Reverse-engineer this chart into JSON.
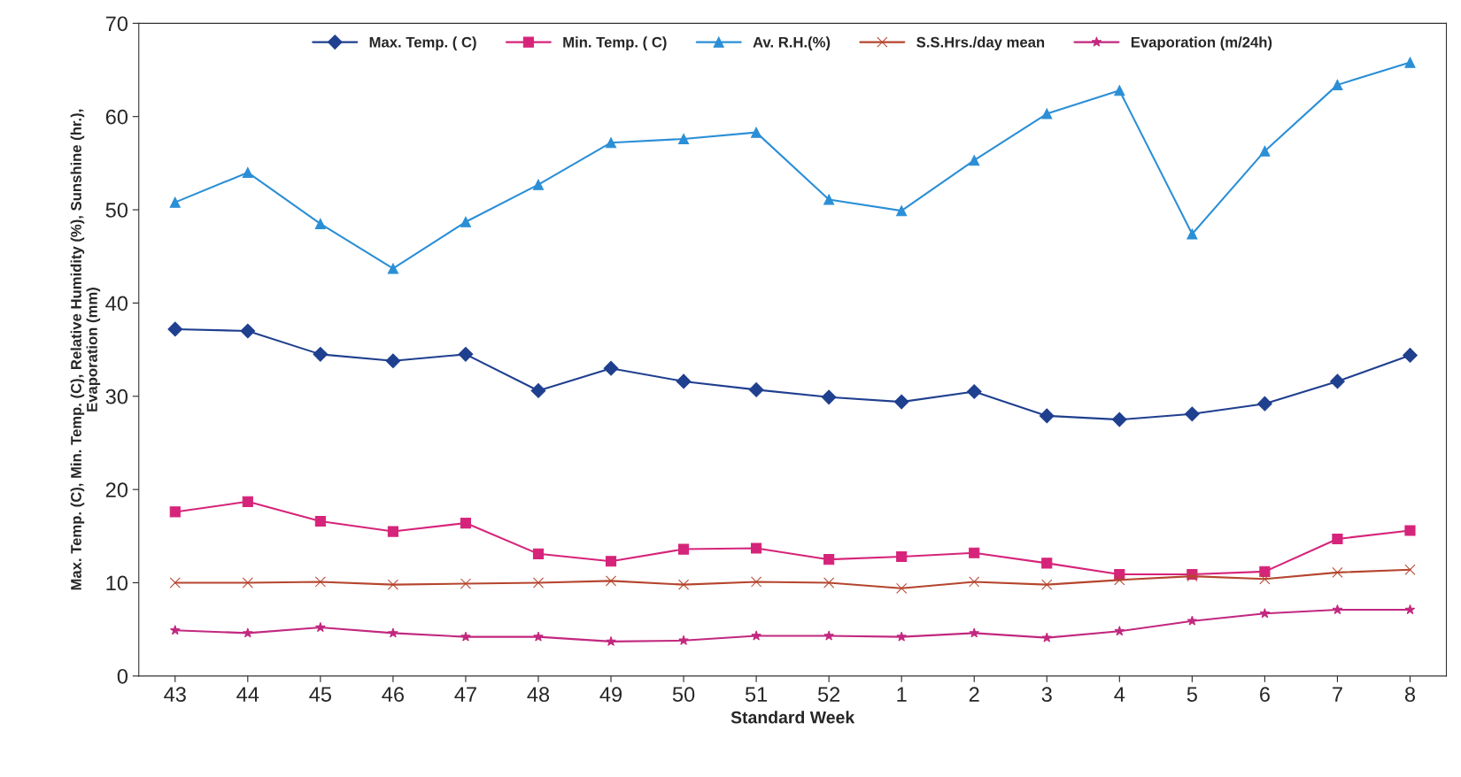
{
  "chart_data": {
    "type": "line",
    "xlabel": "Standard Week",
    "ylabel": "Max. Temp. (C), Min. Temp. (C), Relative Humidity (%), Sunshine (hr.),\nEvaporation (mm)",
    "categories": [
      "43",
      "44",
      "45",
      "46",
      "47",
      "48",
      "49",
      "50",
      "51",
      "52",
      "1",
      "2",
      "3",
      "4",
      "5",
      "6",
      "7",
      "8"
    ],
    "ylim": [
      0,
      70
    ],
    "yticks": [
      0,
      10,
      20,
      30,
      40,
      50,
      60,
      70
    ],
    "grid": false,
    "legend": "top",
    "series": [
      {
        "name": "Max. Temp. ( C)",
        "color": "#1f3f8f",
        "marker": "diamond",
        "values": [
          37.2,
          37.0,
          34.5,
          33.8,
          34.5,
          30.6,
          33.0,
          31.6,
          30.7,
          29.9,
          29.4,
          30.5,
          27.9,
          27.5,
          28.1,
          29.2,
          31.6,
          34.4
        ]
      },
      {
        "name": "Min. Temp. ( C)",
        "color": "#d6247a",
        "marker": "square",
        "values": [
          17.6,
          18.7,
          16.6,
          15.5,
          16.4,
          13.1,
          12.3,
          13.6,
          13.7,
          12.5,
          12.8,
          13.2,
          12.1,
          10.9,
          10.9,
          11.2,
          14.7,
          15.6
        ]
      },
      {
        "name": "Av. R.H.(%)",
        "color": "#2b8fd6",
        "marker": "triangle",
        "values": [
          50.8,
          54.0,
          48.5,
          43.7,
          48.7,
          52.7,
          57.2,
          57.6,
          58.3,
          51.1,
          49.9,
          55.3,
          60.3,
          62.8,
          47.4,
          56.3,
          63.4,
          65.8
        ]
      },
      {
        "name": "S.S.Hrs./day mean",
        "color": "#b5452e",
        "marker": "cross",
        "values": [
          10.0,
          10.0,
          10.1,
          9.8,
          9.9,
          10.0,
          10.2,
          9.8,
          10.1,
          10.0,
          9.4,
          10.1,
          9.8,
          10.3,
          10.7,
          10.4,
          11.1,
          11.4
        ]
      },
      {
        "name": "Evaporation (m/24h)",
        "color": "#c2287f",
        "marker": "star",
        "values": [
          4.9,
          4.6,
          5.2,
          4.6,
          4.2,
          4.2,
          3.7,
          3.8,
          4.3,
          4.3,
          4.2,
          4.6,
          4.1,
          4.8,
          5.9,
          6.7,
          7.1,
          7.1
        ]
      }
    ]
  }
}
